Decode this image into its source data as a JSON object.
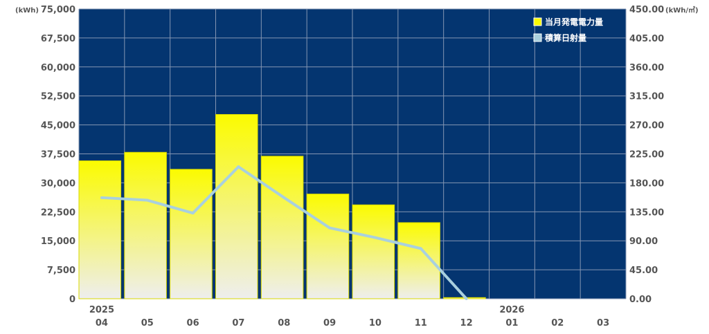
{
  "chart_data": {
    "type": "bar",
    "categories": [
      "04",
      "05",
      "06",
      "07",
      "08",
      "09",
      "10",
      "11",
      "12",
      "01",
      "02",
      "03"
    ],
    "year_labels": [
      "2025",
      "",
      "",
      "",
      "",
      "",
      "",
      "",
      "",
      "2026",
      "",
      ""
    ],
    "y_left": {
      "unit": "(kWh)",
      "ylim": [
        0,
        75000
      ],
      "ticks": [
        "0",
        "7,500",
        "15,000",
        "22,500",
        "30,000",
        "37,500",
        "45,000",
        "52,500",
        "60,000",
        "67,500",
        "75,000"
      ]
    },
    "y_right": {
      "unit": "(kWh/㎡)",
      "ylim": [
        0,
        450
      ],
      "ticks": [
        "0.00",
        "45.00",
        "90.00",
        "135.00",
        "180.00",
        "225.00",
        "270.00",
        "315.00",
        "360.00",
        "405.00",
        "450.00"
      ]
    },
    "series": [
      {
        "name": "当月発電電力量",
        "type": "bar",
        "axis": "left",
        "values": [
          35700,
          37900,
          33500,
          47700,
          36900,
          27100,
          24300,
          19700,
          300,
          null,
          null,
          null
        ]
      },
      {
        "name": "積算日射量",
        "type": "line",
        "axis": "right",
        "values": [
          157,
          153,
          133,
          205,
          157,
          110,
          95,
          78,
          0,
          null,
          null,
          null
        ]
      }
    ],
    "grid": true,
    "legend_position": "top-right",
    "colors": {
      "plot_background": "#043570",
      "grid": "#8596b3",
      "bar_top": "#fbfb00",
      "bar_bottom": "#eeeeee",
      "bar_stroke": "#d8d800",
      "line": "#a9d0de",
      "tick_text": "#555555"
    }
  }
}
